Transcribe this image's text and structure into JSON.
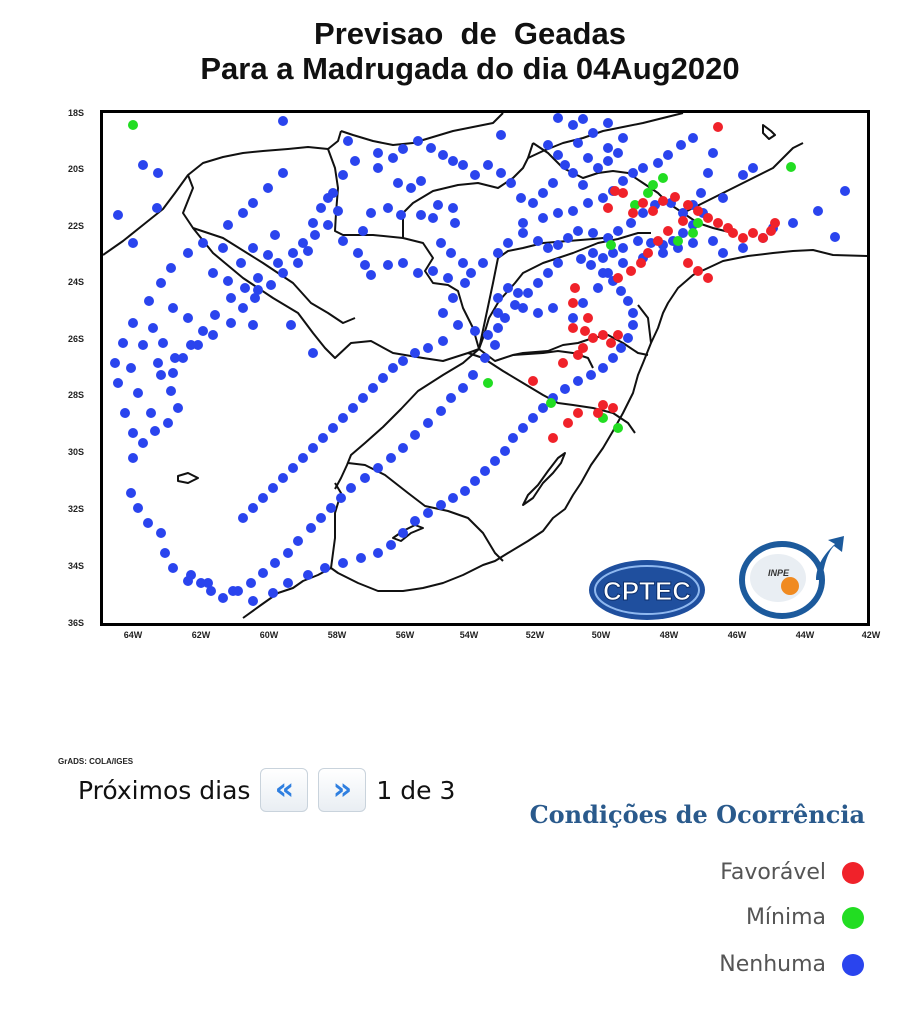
{
  "title": {
    "line1": "Previsao  de  Geadas",
    "line2": "Para a Madrugada do dia 04Aug2020"
  },
  "axes": {
    "y_ticks": [
      "18S",
      "20S",
      "22S",
      "24S",
      "26S",
      "28S",
      "30S",
      "32S",
      "34S",
      "36S"
    ],
    "x_ticks": [
      "64W",
      "62W",
      "60W",
      "58W",
      "56W",
      "54W",
      "52W",
      "50W",
      "48W",
      "46W",
      "44W",
      "42W"
    ]
  },
  "credit": "GrADS: COLA/IGES",
  "nav": {
    "label": "Próximos dias",
    "prev_symbol": "«",
    "next_symbol": "»",
    "page_status": "1 de 3"
  },
  "legend": {
    "title": "Condições de Ocorrência",
    "items": [
      {
        "label": "Favorável",
        "color": "#f0222a"
      },
      {
        "label": "Mínima",
        "color": "#22dd22"
      },
      {
        "label": "Nenhuma",
        "color": "#2a44ee"
      }
    ]
  },
  "logos": {
    "cptec": "CPTEC",
    "inpe": "INPE"
  },
  "colors": {
    "favoravel": "#f0222a",
    "minima": "#22dd22",
    "nenhuma": "#2a44ee",
    "legend_title": "#2a5a8c"
  }
}
